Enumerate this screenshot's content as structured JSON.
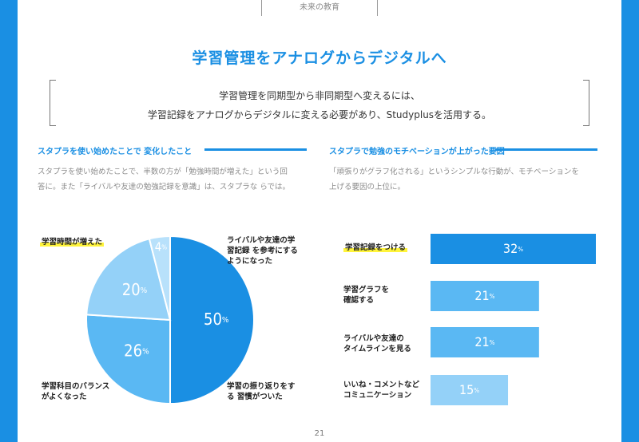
{
  "header": {
    "tab_label": "未来の教育"
  },
  "title": "学習管理をアナログからデジタルへ",
  "summary": {
    "line1": "学習管理を同期型から非同期型へ変えるには、",
    "line2": "学習記録をアナログからデジタルに変える必要があり、Studyplusを活用する。"
  },
  "left_section": {
    "heading": "スタプラを使い始めたことで 変化したこと",
    "body_line1": "スタプラを使い始めたことで、半数の方が「勉強時間が増えた」という回",
    "body_line2": "答に。また「ライバルや友達の勉強記録を意識」は、スタプラな らでは。"
  },
  "right_section": {
    "heading": "スタプラで勉強のモチベーションが上がった要因",
    "body_line1": "「頑張りがグラフ化される」というシンプルな行動が、モチベーションを",
    "body_line2": "上げる要因の上位に。"
  },
  "pie_labels": {
    "study_time": "学習時間が増えた",
    "rival_line1": "ライバルや友達の学",
    "rival_line2": "習記録 を参考にする",
    "rival_line3": "ようになった",
    "review_line1": "学習の振り返りをす",
    "review_line2": "る 習慣がついた",
    "balance_line1": "学習科目のバランス",
    "balance_line2": "がよくなった"
  },
  "bar_labels": {
    "record": "学習記録をつける",
    "graph_line1": "学習グラフを",
    "graph_line2": "確認する",
    "timeline_line1": "ライバルや友達の",
    "timeline_line2": "タイムラインを見る",
    "like_line1": "いいね・コメントなど",
    "like_line2": "コミュニケーション"
  },
  "page_number": "21",
  "colors": {
    "accent": "#1a8fe3",
    "mid": "#5ab8f3",
    "light": "#94d1f8",
    "pale": "#b8e1fb",
    "highlight": "#fff43a"
  },
  "chart_data": [
    {
      "type": "pie",
      "slices": [
        {
          "label": "学習時間が増えた",
          "value": 50,
          "color": "#1a8fe3"
        },
        {
          "label": "ライバルや友達の学習記録 を参考にするようになった",
          "value": 26,
          "color": "#5ab8f3"
        },
        {
          "label": "学習の振り返りをする 習慣がついた",
          "value": 20,
          "color": "#94d1f8"
        },
        {
          "label": "学習科目のバランスがよくなった",
          "value": 4,
          "color": "#b8e1fb"
        }
      ],
      "unit": "%"
    },
    {
      "type": "bar",
      "orientation": "horizontal",
      "categories": [
        "学習記録をつける",
        "学習グラフを確認する",
        "ライバルや友達のタイムラインを見る",
        "いいね・コメントなどコミュニケーション"
      ],
      "values": [
        32,
        21,
        21,
        15
      ],
      "colors": [
        "#1a8fe3",
        "#5ab8f3",
        "#5ab8f3",
        "#94d1f8"
      ],
      "unit": "%"
    }
  ]
}
